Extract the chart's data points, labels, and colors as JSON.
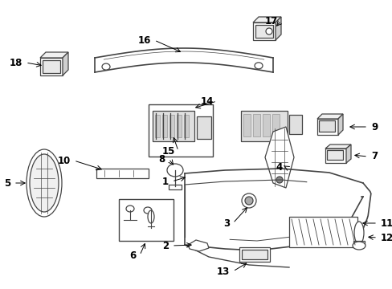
{
  "bg_color": "#ffffff",
  "lc": "#444444",
  "lw": 0.9,
  "figsize": [
    4.89,
    3.6
  ],
  "dpi": 100
}
